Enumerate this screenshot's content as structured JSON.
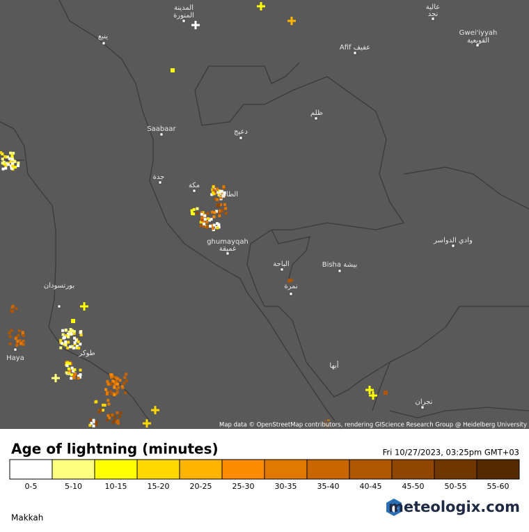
{
  "map": {
    "labels": [
      "المدينة",
      "المنورة",
      "عالية",
      "نجد",
      "ينبع",
      "Gwei'iyyah",
      "القويعية",
      "Afif عفيف",
      "ظلم",
      "Saabaar",
      "دعيج",
      "جدة",
      "مكة",
      "الطائف",
      "ghumayqah",
      "غميقة",
      "الباحة",
      "Bisha بيشة",
      "وادي الدواسر",
      "بورتسودان",
      "نمرة",
      "Haya",
      "طوكر",
      "أبها",
      "نجران"
    ],
    "attribution": "Map data © OpenStreetMap contributors, rendering GIScience Research Group @ Heidelberg University"
  },
  "legend": {
    "title": "Age of lightning (minutes)",
    "timestamp": "Fri 10/27/2023, 03:25pm GMT+03",
    "items": [
      {
        "label": "0-5",
        "color": "#ffffff"
      },
      {
        "label": "5-10",
        "color": "#ffff80"
      },
      {
        "label": "10-15",
        "color": "#ffff00"
      },
      {
        "label": "15-20",
        "color": "#ffd800"
      },
      {
        "label": "20-25",
        "color": "#ffb400"
      },
      {
        "label": "25-30",
        "color": "#ff8c00"
      },
      {
        "label": "30-35",
        "color": "#e07800"
      },
      {
        "label": "35-40",
        "color": "#c86600"
      },
      {
        "label": "40-45",
        "color": "#ae5600"
      },
      {
        "label": "45-50",
        "color": "#8e4600"
      },
      {
        "label": "50-55",
        "color": "#703600"
      },
      {
        "label": "55-60",
        "color": "#552a00"
      }
    ]
  },
  "footer": {
    "brand": "meteologix.com",
    "region": "Makkah"
  }
}
